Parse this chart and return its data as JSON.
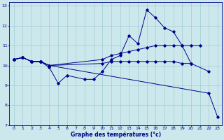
{
  "xlabel": "Graphe des températures (°c)",
  "background_color": "#cce8ec",
  "line_color": "#00008b",
  "grid_color": "#9fccd4",
  "xlim": [
    -0.5,
    23.5
  ],
  "ylim": [
    7,
    13.2
  ],
  "xticks": [
    0,
    1,
    2,
    3,
    4,
    5,
    6,
    7,
    8,
    9,
    10,
    11,
    12,
    13,
    14,
    15,
    16,
    17,
    18,
    19,
    20,
    21,
    22,
    23
  ],
  "yticks": [
    7,
    8,
    9,
    10,
    11,
    12,
    13
  ],
  "series": [
    {
      "x": [
        0,
        1,
        2,
        3,
        4,
        5,
        6,
        8,
        9,
        10,
        11,
        12,
        13,
        14,
        15,
        16,
        17,
        18,
        19,
        20,
        22
      ],
      "y": [
        10.3,
        10.4,
        10.2,
        10.2,
        9.9,
        9.1,
        9.5,
        9.3,
        9.3,
        9.7,
        10.3,
        10.5,
        11.5,
        11.1,
        12.8,
        12.4,
        11.9,
        11.7,
        11.0,
        10.1,
        9.7
      ]
    },
    {
      "x": [
        0,
        1,
        2,
        3,
        4,
        10,
        11,
        12,
        13,
        14,
        15,
        16,
        17,
        18,
        19,
        20,
        21
      ],
      "y": [
        10.3,
        10.4,
        10.2,
        10.2,
        10.0,
        10.3,
        10.5,
        10.6,
        10.7,
        10.8,
        10.9,
        11.0,
        11.0,
        11.0,
        11.0,
        11.0,
        11.0
      ]
    },
    {
      "x": [
        0,
        1,
        2,
        3,
        4,
        22,
        23
      ],
      "y": [
        10.3,
        10.4,
        10.2,
        10.2,
        10.0,
        8.6,
        7.4
      ]
    },
    {
      "x": [
        0,
        1,
        2,
        3,
        4,
        10,
        11,
        12,
        13,
        14,
        15,
        16,
        17,
        18,
        19,
        20
      ],
      "y": [
        10.3,
        10.4,
        10.2,
        10.2,
        10.0,
        10.1,
        10.2,
        10.2,
        10.2,
        10.2,
        10.2,
        10.2,
        10.2,
        10.2,
        10.1,
        10.1
      ]
    }
  ]
}
